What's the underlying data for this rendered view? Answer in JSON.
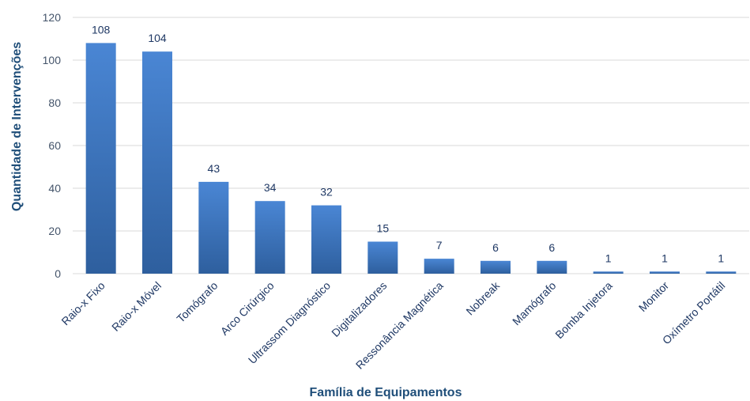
{
  "chart_data": {
    "type": "bar",
    "title": "",
    "xlabel": "Família de Equipamentos",
    "ylabel": "Quantidade de Intervenções",
    "categories": [
      "Raio-x Fixo",
      "Raio-x Móvel",
      "Tomógrafo",
      "Arco Cirúrgico",
      "Ultrassom Diagnóstico",
      "Digitalizadores",
      "Ressonância Magnética",
      "Nobreak",
      "Mamógrafo",
      "Bomba Injetora",
      "Monitor",
      "Oxímetro Portátil"
    ],
    "values": [
      108,
      104,
      43,
      34,
      32,
      15,
      7,
      6,
      6,
      1,
      1,
      1
    ],
    "ylim": [
      0,
      120
    ],
    "yticks": [
      0,
      20,
      40,
      60,
      80,
      100,
      120
    ],
    "grid": true,
    "legend": "none",
    "colors": {
      "bar_top": "#4a86d4",
      "bar_bottom": "#2e5f9e",
      "label": "#1f3864",
      "axis_title": "#1f4e79"
    }
  }
}
